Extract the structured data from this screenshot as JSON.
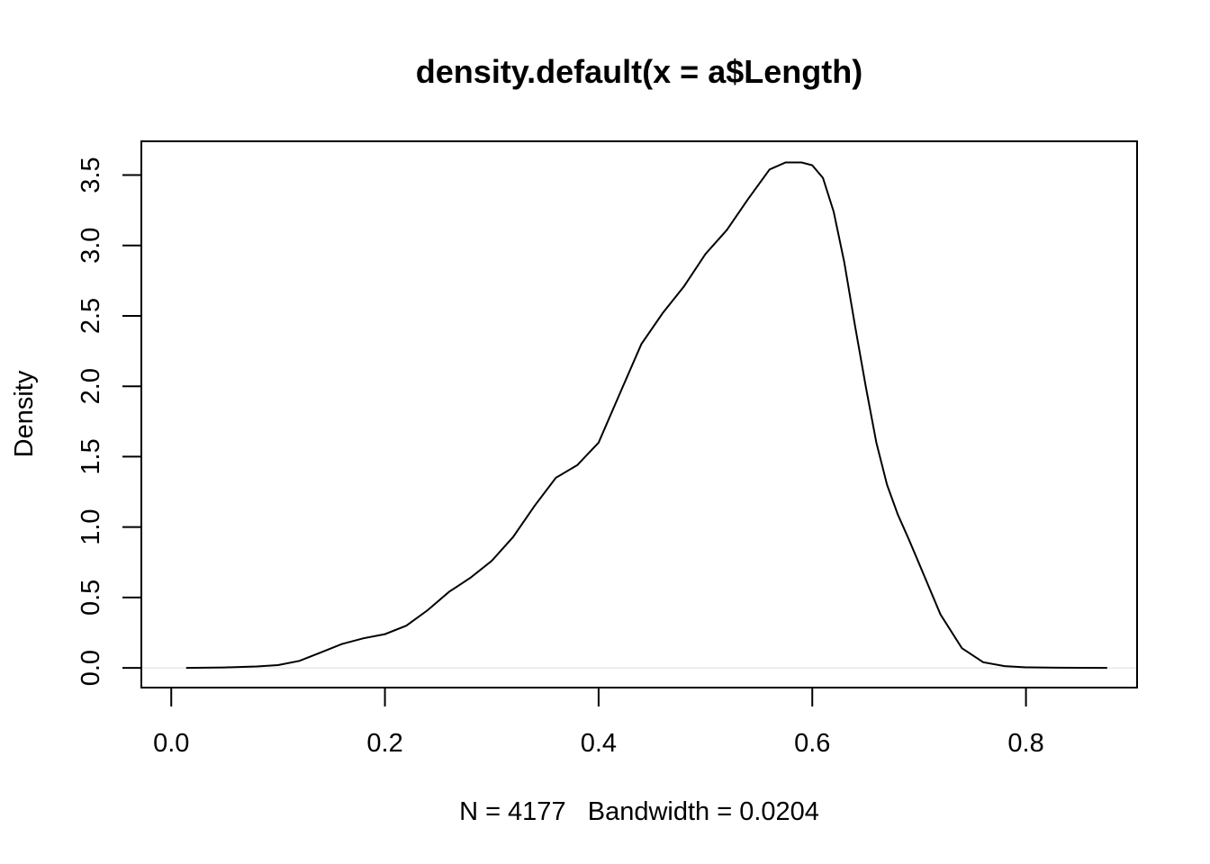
{
  "chart_data": {
    "type": "line",
    "title": "density.default(x = a$Length)",
    "xlabel": "N = 4177   Bandwidth = 0.0204",
    "ylabel": "Density",
    "xlim": [
      -0.028,
      0.904
    ],
    "ylim": [
      -0.14,
      3.74
    ],
    "x_ticks": [
      0.0,
      0.2,
      0.4,
      0.6,
      0.8
    ],
    "x_tick_labels": [
      "0.0",
      "0.2",
      "0.4",
      "0.6",
      "0.8"
    ],
    "y_ticks": [
      0.0,
      0.5,
      1.0,
      1.5,
      2.0,
      2.5,
      3.0,
      3.5
    ],
    "y_tick_labels": [
      "0.0",
      "0.5",
      "1.0",
      "1.5",
      "2.0",
      "2.5",
      "3.0",
      "3.5"
    ],
    "zero_line": true,
    "series": [
      {
        "color": "#000000",
        "x": [
          0.014,
          0.05,
          0.08,
          0.1,
          0.12,
          0.14,
          0.16,
          0.18,
          0.2,
          0.22,
          0.24,
          0.26,
          0.28,
          0.3,
          0.32,
          0.34,
          0.36,
          0.38,
          0.4,
          0.42,
          0.44,
          0.46,
          0.48,
          0.5,
          0.52,
          0.54,
          0.56,
          0.575,
          0.59,
          0.6,
          0.61,
          0.62,
          0.63,
          0.64,
          0.65,
          0.66,
          0.67,
          0.68,
          0.69,
          0.7,
          0.72,
          0.74,
          0.76,
          0.78,
          0.8,
          0.83,
          0.876
        ],
        "y": [
          0.0,
          0.003,
          0.01,
          0.02,
          0.05,
          0.11,
          0.17,
          0.21,
          0.24,
          0.3,
          0.41,
          0.54,
          0.64,
          0.76,
          0.93,
          1.15,
          1.35,
          1.44,
          1.6,
          1.95,
          2.3,
          2.52,
          2.71,
          2.94,
          3.11,
          3.33,
          3.54,
          3.59,
          3.59,
          3.57,
          3.48,
          3.24,
          2.88,
          2.43,
          2.0,
          1.6,
          1.3,
          1.09,
          0.92,
          0.74,
          0.38,
          0.14,
          0.04,
          0.013,
          0.004,
          0.001,
          0.0
        ]
      }
    ]
  }
}
